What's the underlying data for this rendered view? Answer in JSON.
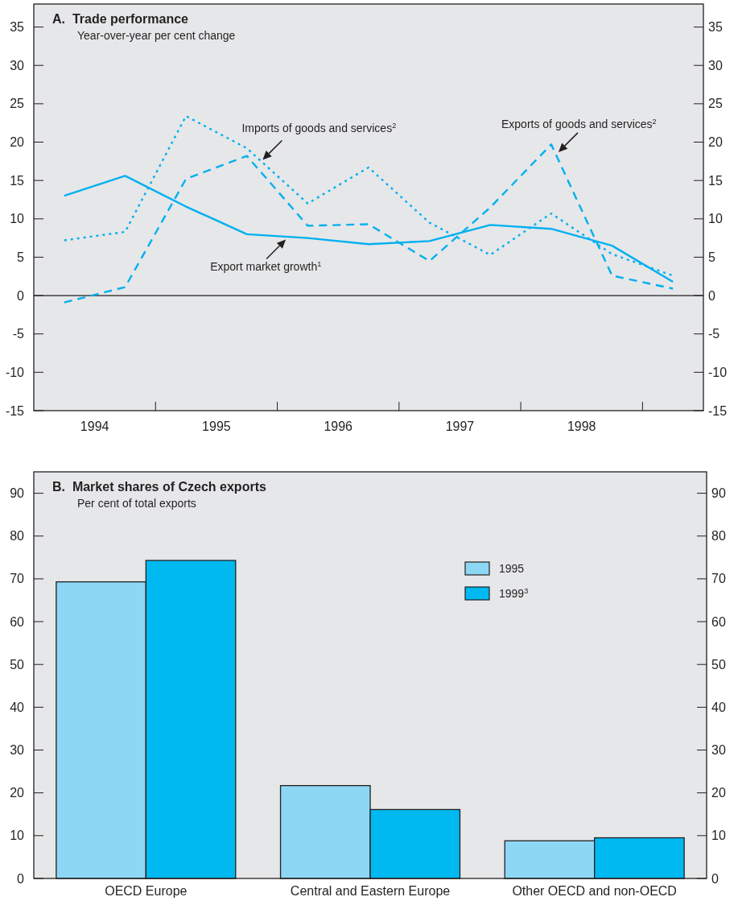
{
  "chart_data": [
    {
      "type": "line",
      "title": "A.  Trade performance",
      "subtitle": "Year-over-year per cent change",
      "x": [
        1994.25,
        1994.75,
        1995.25,
        1995.75,
        1996.25,
        1996.75,
        1997.25,
        1997.75,
        1998.25,
        1998.75,
        1999.25
      ],
      "series": [
        {
          "color": "#00b0f0",
          "line_style": "solid",
          "values": [
            13.0,
            15.6,
            11.6,
            8.0,
            7.5,
            6.7,
            7.1,
            9.2,
            8.7,
            6.5,
            1.8
          ]
        },
        {
          "color": "#00b0f0",
          "line_style": "dotted",
          "values": [
            7.2,
            8.3,
            23.4,
            19.2,
            12.0,
            16.7,
            9.5,
            5.3,
            10.7,
            5.4,
            2.6
          ]
        },
        {
          "color": "#00b0f0",
          "line_style": "dashed",
          "values": [
            -0.9,
            1.1,
            15.2,
            18.2,
            9.1,
            9.3,
            4.5,
            11.5,
            19.7,
            2.6,
            0.9
          ]
        }
      ],
      "annotations": [
        {
          "text": "Imports of goods and services$^{2}$",
          "x": 1995.88,
          "y": 17.7
        },
        {
          "text": "Exports of goods and services$^{2}$",
          "x": 1998.31,
          "y": 18.7
        },
        {
          "text": "Export market growth$^{1}$",
          "x": 1996.07,
          "y": 7.3
        }
      ],
      "xlim": [
        1994,
        1999.5
      ],
      "xticks": [
        {
          "value": 1994.5,
          "label": "1994"
        },
        {
          "value": 1995,
          "label": null
        },
        {
          "value": 1995.5,
          "label": "1995"
        },
        {
          "value": 1996,
          "label": null
        },
        {
          "value": 1996.5,
          "label": "1996"
        },
        {
          "value": 1997,
          "label": null
        },
        {
          "value": 1997.5,
          "label": "1997"
        },
        {
          "value": 1998,
          "label": null
        },
        {
          "value": 1998.5,
          "label": "1998"
        },
        {
          "value": 1999,
          "label": null
        }
      ],
      "ylim": [
        -15,
        38
      ],
      "yticks": [
        -15,
        -10,
        -5,
        0,
        5,
        10,
        15,
        20,
        25,
        30,
        35
      ],
      "y2lim": [
        -15,
        38
      ],
      "y2ticks": [
        -15,
        -10,
        -5,
        0,
        5,
        10,
        15,
        20,
        25,
        30,
        35
      ],
      "ref_lines": [
        {
          "axis": "y",
          "value": 0,
          "color": "#231f20"
        }
      ]
    },
    {
      "type": "bar",
      "title": "B.  Market shares of Czech exports",
      "subtitle": "Per cent of total exports",
      "categories": [
        "OECD Europe",
        "Central and Eastern Europe",
        "Other OECD and non-OECD"
      ],
      "series": [
        {
          "name": "1995",
          "color": "#8dd7f5",
          "values": [
            69.3,
            21.7,
            8.8
          ]
        },
        {
          "name": "1999$^{3}$",
          "color": "#00b9f0",
          "values": [
            74.3,
            16.1,
            9.5
          ]
        }
      ],
      "ylim": [
        0,
        95
      ],
      "yticks": [
        0,
        10,
        20,
        30,
        40,
        50,
        60,
        70,
        80,
        90
      ],
      "y2lim": [
        0,
        95
      ],
      "y2ticks": [
        0,
        10,
        20,
        30,
        40,
        50,
        60,
        70,
        80,
        90
      ],
      "grid": false,
      "legend": "top right"
    }
  ]
}
